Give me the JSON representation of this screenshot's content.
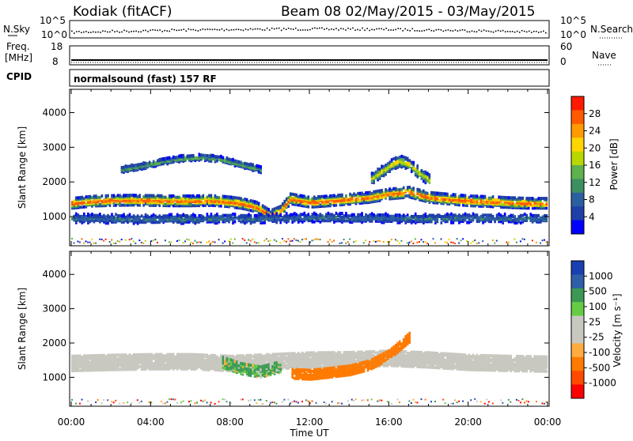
{
  "header": {
    "station": "Kodiak (fitACF)",
    "beam_date": "Beam 08 02/May/2015 - 03/May/2015"
  },
  "aux_panels": {
    "nsky_label": "N.Sky",
    "nsearch_label": "N.Search",
    "nsky_ticks": [
      "10^5",
      "10^0"
    ],
    "freq_label_1": "Freq.",
    "freq_label_2": "[MHz]",
    "freq_ticks": [
      "18",
      "8"
    ],
    "nave_label": "Nave",
    "nave_ticks": [
      "60",
      "0"
    ],
    "cpid_label": "CPID",
    "cpid_text": "normalsound (fast) 157 RF"
  },
  "colors": {
    "power_scale": [
      "#0000ff",
      "#1f3fa8",
      "#2b5fa0",
      "#3d8f62",
      "#5fb04e",
      "#b8d600",
      "#ffd500",
      "#ff9a00",
      "#ff5a00",
      "#ff1a00"
    ],
    "velocity_scale": [
      "#ff0000",
      "#ff4a00",
      "#ff7a00",
      "#ffab40",
      "#c8c8c0",
      "#c8c8c0",
      "#66cc44",
      "#3a9a55",
      "#2e5fa8",
      "#1a3fb0"
    ],
    "ground_scatter": "#c8c8c0"
  },
  "chart_data": [
    {
      "type": "heatmap",
      "name": "power",
      "ylabel": "Slant Range [km]",
      "xlabel": "Time UT",
      "x_ticks": [
        "00:00",
        "04:00",
        "08:00",
        "12:00",
        "16:00",
        "20:00",
        "00:00"
      ],
      "y_ticks": [
        "1000",
        "2000",
        "3000",
        "4000"
      ],
      "xlim_hours": [
        0,
        24
      ],
      "ylim_km": [
        180,
        4650
      ],
      "colorbar_label": "Power [dB]",
      "colorbar_ticks": [
        "28",
        "24",
        "20",
        "16",
        "12",
        "8",
        "4"
      ],
      "colorbar_range": [
        0,
        30
      ],
      "bands": [
        {
          "hours": [
            0,
            0.5,
            1,
            2,
            3,
            4,
            5,
            6,
            7,
            7.8,
            8.6,
            9.3,
            10,
            10.5,
            11,
            12,
            13,
            14,
            15,
            16,
            17,
            18,
            19,
            20,
            21,
            22,
            23,
            24
          ],
          "center_km": [
            1430,
            1460,
            1490,
            1510,
            1520,
            1510,
            1500,
            1500,
            1510,
            1480,
            1420,
            1320,
            1080,
            1200,
            1560,
            1460,
            1500,
            1550,
            1600,
            1700,
            1750,
            1600,
            1550,
            1500,
            1480,
            1450,
            1430,
            1430
          ],
          "thickness_km": 200,
          "peak_db": 26
        },
        {
          "hours": [
            0,
            2,
            4,
            6,
            8,
            9,
            10,
            12,
            14,
            16,
            18,
            20,
            22,
            24
          ],
          "center_km": [
            1000,
            980,
            970,
            980,
            990,
            980,
            1000,
            1020,
            1010,
            1000,
            990,
            1000,
            990,
            980
          ],
          "thickness_km": 180,
          "peak_db": 8
        },
        {
          "hours": [
            2.5,
            3.5,
            4.5,
            5.5,
            6.5,
            7.5,
            8.5,
            9.5
          ],
          "center_km": [
            2400,
            2500,
            2620,
            2720,
            2760,
            2700,
            2550,
            2400
          ],
          "thickness_km": 120,
          "peak_db": 13
        },
        {
          "hours": [
            15,
            15.5,
            16,
            16.5,
            17,
            17.5,
            18
          ],
          "center_km": [
            2100,
            2300,
            2500,
            2650,
            2550,
            2300,
            2100
          ],
          "thickness_km": 220,
          "peak_db": 18
        }
      ]
    },
    {
      "type": "heatmap",
      "name": "velocity",
      "ylabel": "Slant Range [km]",
      "xlabel": "Time UT",
      "x_ticks": [
        "00:00",
        "04:00",
        "08:00",
        "12:00",
        "16:00",
        "20:00",
        "00:00"
      ],
      "y_ticks": [
        "1000",
        "2000",
        "3000",
        "4000"
      ],
      "xlim_hours": [
        0,
        24
      ],
      "ylim_km": [
        180,
        4650
      ],
      "colorbar_label": "Velocity [m s⁻¹]",
      "colorbar_ticks": [
        "1000",
        "500",
        "100",
        "25",
        "-25",
        "-100",
        "-500",
        "-1000"
      ],
      "bands": [
        {
          "kind": "ground_scatter",
          "hours": [
            0,
            2,
            4,
            6,
            8,
            10,
            12,
            14,
            16,
            18,
            20,
            22,
            24
          ],
          "center_km": [
            1450,
            1480,
            1500,
            1500,
            1450,
            1500,
            1550,
            1560,
            1600,
            1550,
            1480,
            1450,
            1430
          ],
          "thickness_km": 420
        },
        {
          "kind": "negative_flow",
          "hours": [
            11,
            12,
            13,
            14,
            15,
            16,
            16.5,
            17
          ],
          "center_km": [
            1150,
            1120,
            1180,
            1250,
            1400,
            1700,
            1950,
            2200
          ],
          "thickness_km": 260,
          "velocity": -300
        },
        {
          "kind": "positive_flow",
          "hours": [
            7.5,
            8.5,
            9.5,
            10.5
          ],
          "center_km": [
            1500,
            1300,
            1200,
            1350
          ],
          "thickness_km": 300,
          "velocity": 150
        }
      ]
    }
  ]
}
